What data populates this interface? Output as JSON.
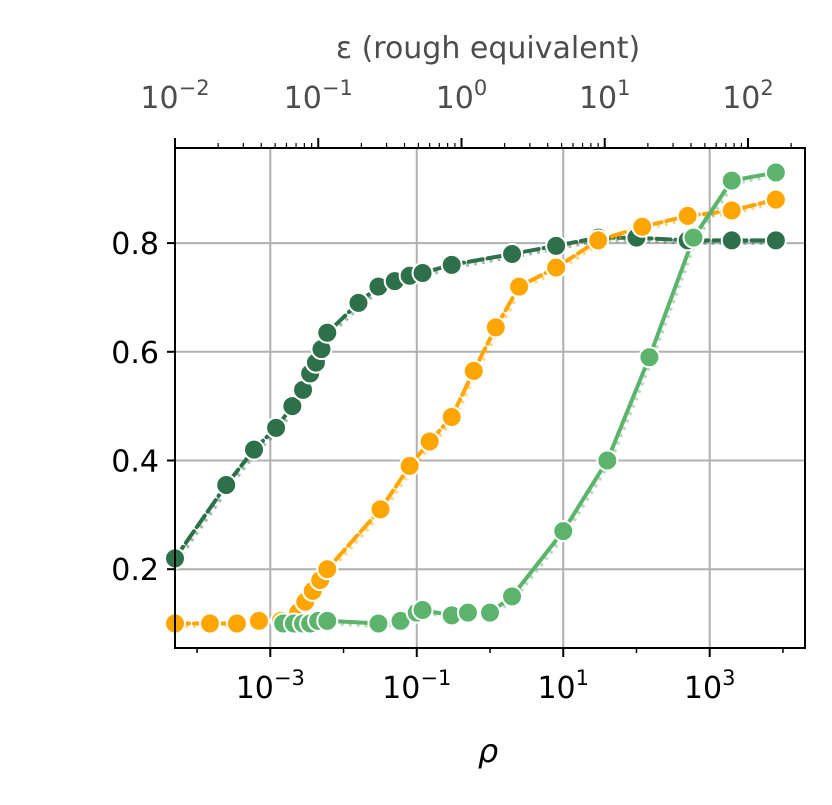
{
  "chart_data": {
    "type": "line",
    "xlabel": "ρ",
    "ylabel": "",
    "top_xlabel": "ε (rough equivalent)",
    "x_scale": "log",
    "top_x_scale": "log",
    "xlim": [
      5e-05,
      20000
    ],
    "ylim": [
      0.055,
      0.975
    ],
    "top_xlim": [
      0.01,
      250
    ],
    "grid": true,
    "legend": "none",
    "yticks": [
      {
        "value": 0.2,
        "label": "0.2"
      },
      {
        "value": 0.4,
        "label": "0.4"
      },
      {
        "value": 0.6,
        "label": "0.6"
      },
      {
        "value": 0.8,
        "label": "0.8"
      }
    ],
    "xticks": [
      {
        "value": 0.001,
        "base": "10",
        "exp": "−3"
      },
      {
        "value": 0.1,
        "base": "10",
        "exp": "−1"
      },
      {
        "value": 10,
        "base": "10",
        "exp": "1"
      },
      {
        "value": 1000,
        "base": "10",
        "exp": "3"
      }
    ],
    "top_xticks": [
      {
        "value": 0.01,
        "base": "10",
        "exp": "−2"
      },
      {
        "value": 0.1,
        "base": "10",
        "exp": "−1"
      },
      {
        "value": 1,
        "base": "10",
        "exp": "0"
      },
      {
        "value": 10,
        "base": "10",
        "exp": "1"
      },
      {
        "value": 100,
        "base": "10",
        "exp": "2"
      }
    ],
    "series": [
      {
        "color": "#2e7049",
        "style": "dashed",
        "x": [
          5e-05,
          0.00025,
          0.0006,
          0.0012,
          0.002,
          0.0028,
          0.0035,
          0.0042,
          0.005,
          0.006,
          0.016,
          0.03,
          0.05,
          0.08,
          0.12,
          0.3,
          2,
          8,
          30,
          100,
          500,
          2000,
          8000
        ],
        "y": [
          0.22,
          0.355,
          0.42,
          0.46,
          0.5,
          0.53,
          0.56,
          0.58,
          0.605,
          0.635,
          0.69,
          0.72,
          0.73,
          0.74,
          0.745,
          0.76,
          0.78,
          0.795,
          0.81,
          0.81,
          0.805,
          0.805,
          0.805
        ]
      },
      {
        "color": "#ffa500",
        "style": "dashed",
        "x": [
          5e-05,
          0.00015,
          0.00035,
          0.0007,
          0.0014,
          0.0024,
          0.003,
          0.0038,
          0.0048,
          0.006,
          0.032,
          0.08,
          0.15,
          0.3,
          0.6,
          1.2,
          2.5,
          8,
          30,
          120,
          500,
          2000,
          8000
        ],
        "y": [
          0.1,
          0.1,
          0.1,
          0.105,
          0.105,
          0.12,
          0.14,
          0.16,
          0.18,
          0.2,
          0.31,
          0.39,
          0.435,
          0.48,
          0.565,
          0.645,
          0.72,
          0.755,
          0.805,
          0.83,
          0.85,
          0.86,
          0.88
        ]
      },
      {
        "color": "#5cb46c",
        "style": "solid",
        "x": [
          0.0015,
          0.0021,
          0.0028,
          0.0035,
          0.0045,
          0.006,
          0.03,
          0.06,
          0.1,
          0.12,
          0.3,
          0.5,
          1,
          2,
          10,
          40,
          150,
          600,
          2000,
          8000
        ],
        "y": [
          0.1,
          0.1,
          0.1,
          0.1,
          0.105,
          0.105,
          0.1,
          0.105,
          0.12,
          0.125,
          0.115,
          0.12,
          0.12,
          0.15,
          0.27,
          0.4,
          0.59,
          0.81,
          0.915,
          0.93
        ]
      }
    ]
  }
}
